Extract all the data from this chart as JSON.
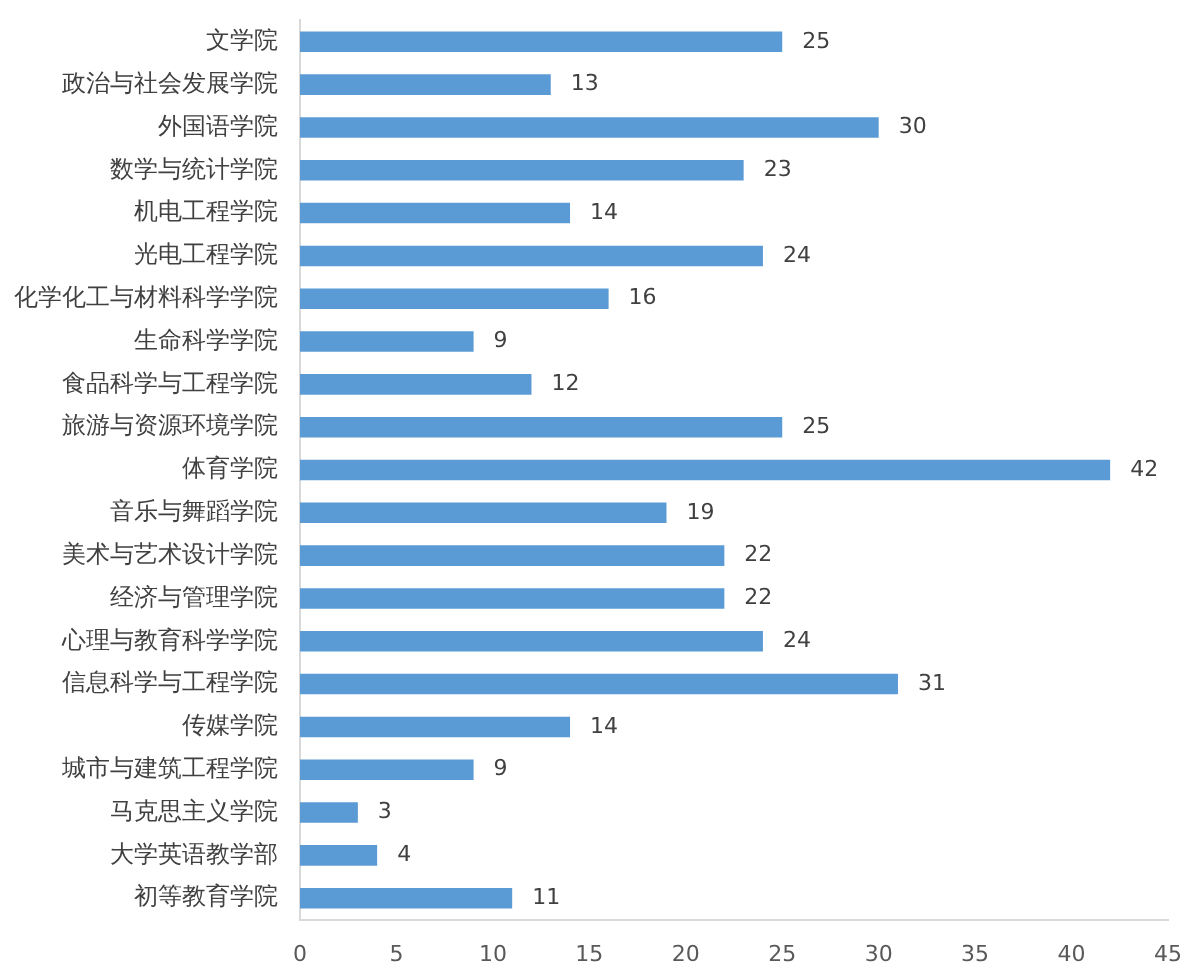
{
  "chart_data": {
    "type": "bar",
    "orientation": "horizontal",
    "categories": [
      "文学院",
      "政治与社会发展学院",
      "外国语学院",
      "数学与统计学院",
      "机电工程学院",
      "光电工程学院",
      "化学化工与材料科学学院",
      "生命科学学院",
      "食品科学与工程学院",
      "旅游与资源环境学院",
      "体育学院",
      "音乐与舞蹈学院",
      "美术与艺术设计学院",
      "经济与管理学院",
      "心理与教育科学学院",
      "信息科学与工程学院",
      "传媒学院",
      "城市与建筑工程学院",
      "马克思主义学院",
      "大学英语教学部",
      "初等教育学院"
    ],
    "values": [
      25,
      13,
      30,
      23,
      14,
      24,
      16,
      9,
      12,
      25,
      42,
      19,
      22,
      22,
      24,
      31,
      14,
      9,
      3,
      4,
      11
    ],
    "color": "#5b9bd5",
    "xlim": [
      0,
      45
    ],
    "xticks": [
      0,
      5,
      10,
      15,
      20,
      25,
      30,
      35,
      40,
      45
    ],
    "grid": false,
    "data_labels": true
  }
}
